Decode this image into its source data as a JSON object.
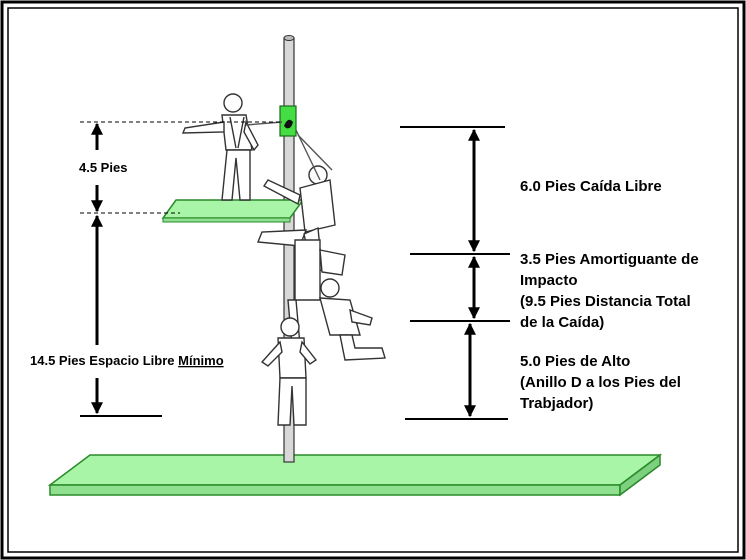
{
  "left_labels": {
    "harness_span": "4.5 Pies",
    "clearance_prefix": "14.5 Pies Espacio Libre ",
    "clearance_underlined": "Mínimo"
  },
  "right_labels": {
    "free_fall": "6.0 Pies Caída Libre",
    "absorber_line1": "3.5 Pies Amortiguante de",
    "absorber_line2": "Impacto",
    "total_line1": "(9.5 Pies Distancia Total",
    "total_line2": "de la Caída)",
    "height_line1": "5.0 Pies de Alto",
    "height_line2": "(Anillo D a los Pies del",
    "height_line3": "Trabjador)"
  },
  "colors": {
    "platform_fill": "#a8f5a8",
    "platform_stroke": "#2a8a2a",
    "grab_device": "#44dd44",
    "pole_fill": "#d8d8d8",
    "text": "#000000"
  },
  "icons": [
    "worker-standing",
    "worker-falling",
    "worker-arrested",
    "rope-grab-device",
    "vertical-lifeline"
  ]
}
